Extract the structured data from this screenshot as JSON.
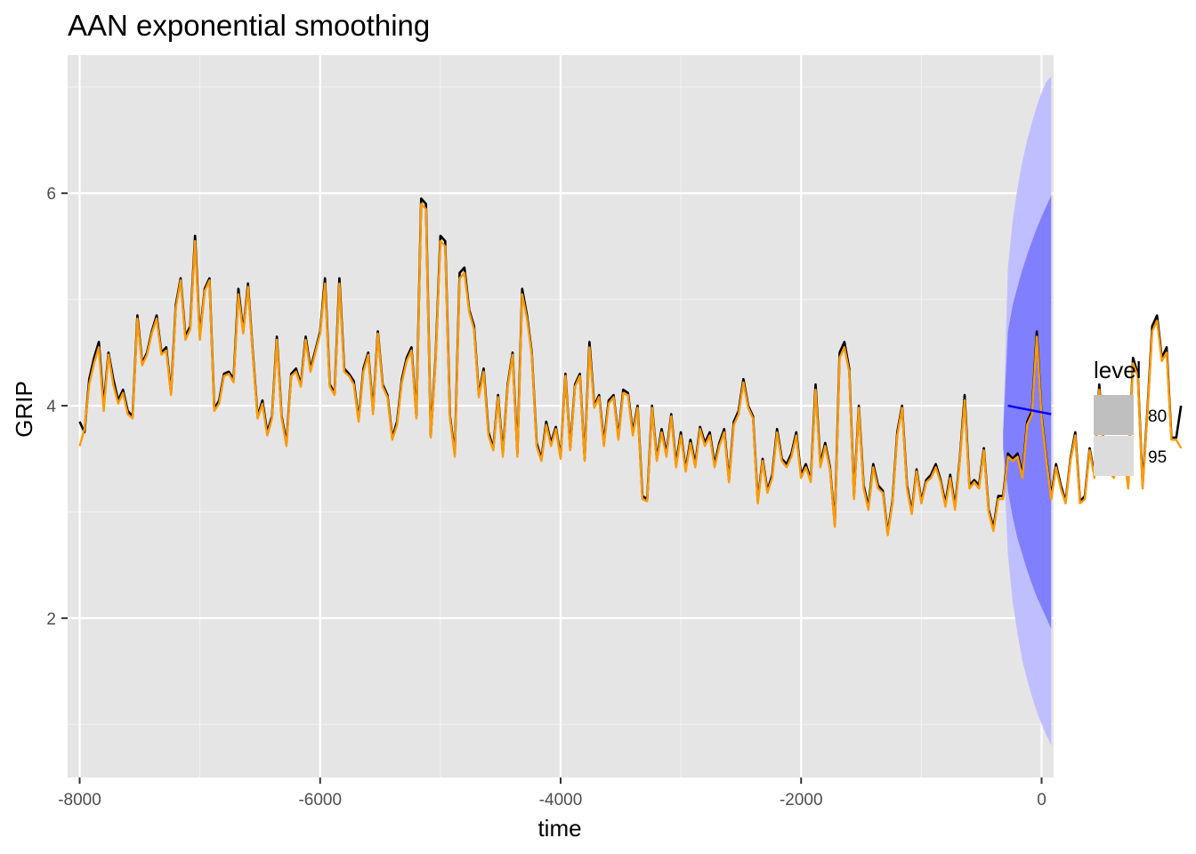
{
  "chart_data": {
    "type": "line",
    "title": "AAN exponential smoothing",
    "xlabel": "time",
    "ylabel": "GRIP",
    "xlim": [
      -8100,
      100
    ],
    "ylim": [
      0.5,
      7.3
    ],
    "x_ticks": [
      -8000,
      -6000,
      -4000,
      -2000,
      0
    ],
    "x_tick_labels": [
      "-8000",
      "-6000",
      "-4000",
      "-2000",
      "0"
    ],
    "y_ticks": [
      2,
      4,
      6
    ],
    "y_tick_labels": [
      "2",
      "4",
      "6"
    ],
    "grid": true,
    "legend": {
      "title": "level",
      "position": "right",
      "entries": [
        {
          "label": "80",
          "color": "#bfbfbf"
        },
        {
          "label": "95",
          "color": "#dcdcdc"
        }
      ]
    },
    "series": [
      {
        "role": "observed",
        "color": "#000000",
        "x_start": -8000,
        "x_step": 40,
        "values": [
          3.85,
          3.75,
          4.25,
          4.45,
          4.6,
          4.0,
          4.5,
          4.25,
          4.05,
          4.15,
          3.95,
          3.9,
          4.85,
          4.4,
          4.5,
          4.7,
          4.85,
          4.5,
          4.55,
          4.12,
          4.95,
          5.2,
          4.65,
          4.75,
          5.6,
          4.65,
          5.1,
          5.2,
          3.97,
          4.05,
          4.3,
          4.32,
          4.25,
          5.1,
          4.7,
          5.15,
          4.5,
          3.9,
          4.05,
          3.75,
          3.9,
          4.65,
          3.9,
          3.65,
          4.3,
          4.35,
          4.2,
          4.65,
          4.35,
          4.52,
          4.7,
          5.2,
          4.2,
          4.12,
          5.2,
          4.35,
          4.3,
          4.23,
          3.87,
          4.35,
          4.5,
          3.95,
          4.7,
          4.2,
          4.1,
          3.7,
          3.85,
          4.25,
          4.45,
          4.55,
          3.9,
          5.95,
          5.9,
          3.72,
          4.45,
          5.6,
          5.55,
          3.9,
          3.55,
          5.25,
          5.3,
          4.9,
          4.75,
          4.1,
          4.35,
          3.75,
          3.6,
          4.1,
          3.55,
          4.2,
          4.5,
          3.55,
          5.1,
          4.85,
          4.5,
          3.65,
          3.5,
          3.85,
          3.65,
          3.8,
          3.52,
          4.3,
          3.6,
          4.2,
          4.3,
          3.5,
          4.6,
          4.0,
          4.1,
          3.65,
          4.05,
          4.1,
          3.7,
          4.15,
          4.12,
          3.75,
          4.0,
          3.15,
          3.12,
          4.0,
          3.5,
          3.78,
          3.55,
          3.92,
          3.45,
          3.75,
          3.4,
          3.68,
          3.45,
          3.8,
          3.65,
          3.75,
          3.45,
          3.65,
          3.78,
          3.3,
          3.85,
          3.95,
          4.25,
          4.0,
          3.9,
          3.1,
          3.5,
          3.2,
          3.35,
          3.78,
          3.5,
          3.45,
          3.55,
          3.75,
          3.35,
          3.45,
          3.3,
          4.2,
          3.45,
          3.65,
          3.42,
          2.88,
          4.5,
          4.6,
          4.35,
          3.15,
          4.0,
          3.25,
          3.05,
          3.45,
          3.25,
          3.2,
          2.8,
          3.1,
          3.75,
          4.0,
          3.25,
          3.0,
          3.4,
          3.1,
          3.3,
          3.35,
          3.45,
          3.3,
          3.08,
          3.35,
          3.05,
          3.5,
          4.1,
          3.25,
          3.3,
          3.25,
          3.6,
          3.02,
          2.85,
          3.15,
          3.15,
          3.55,
          3.5,
          3.55,
          3.35,
          3.85,
          3.95,
          4.7,
          3.9,
          3.5,
          3.15,
          3.45,
          3.25,
          3.1,
          3.5,
          3.75,
          3.1,
          3.15,
          3.6,
          3.35,
          4.2,
          3.55,
          3.4,
          3.35,
          3.5,
          3.6,
          3.25,
          4.45,
          4.3,
          3.25,
          3.95,
          4.75,
          4.85,
          4.45,
          4.55,
          3.7,
          3.7,
          4.0
        ],
        "name": ""
      },
      {
        "role": "fitted",
        "color": "#ff9a00",
        "x_start": -8000,
        "x_step": 40,
        "values": [
          3.62,
          3.78,
          4.2,
          4.4,
          4.55,
          3.95,
          4.48,
          4.2,
          4.02,
          4.12,
          3.92,
          3.88,
          4.82,
          4.38,
          4.48,
          4.68,
          4.82,
          4.48,
          4.52,
          4.1,
          4.92,
          5.18,
          4.62,
          4.72,
          5.55,
          4.62,
          5.08,
          5.18,
          3.95,
          4.02,
          4.28,
          4.3,
          4.22,
          5.05,
          4.68,
          5.12,
          4.48,
          3.88,
          4.02,
          3.72,
          3.88,
          4.62,
          3.88,
          3.62,
          4.28,
          4.32,
          4.18,
          4.62,
          4.32,
          4.5,
          4.68,
          5.15,
          4.18,
          4.1,
          5.15,
          4.32,
          4.28,
          4.2,
          3.85,
          4.32,
          4.48,
          3.92,
          4.68,
          4.18,
          4.08,
          3.68,
          3.82,
          4.22,
          4.42,
          4.52,
          3.88,
          5.9,
          5.85,
          3.7,
          4.42,
          5.55,
          5.5,
          3.88,
          3.52,
          5.2,
          5.25,
          4.88,
          4.72,
          4.08,
          4.32,
          3.72,
          3.58,
          4.08,
          3.52,
          4.18,
          4.48,
          3.52,
          5.05,
          4.82,
          4.48,
          3.62,
          3.48,
          3.82,
          3.62,
          3.78,
          3.5,
          4.28,
          3.58,
          4.18,
          4.28,
          3.48,
          4.55,
          3.98,
          4.08,
          3.62,
          4.02,
          4.08,
          3.68,
          4.12,
          4.1,
          3.72,
          3.98,
          3.12,
          3.1,
          3.98,
          3.48,
          3.75,
          3.52,
          3.9,
          3.42,
          3.72,
          3.38,
          3.65,
          3.42,
          3.78,
          3.62,
          3.72,
          3.42,
          3.62,
          3.75,
          3.28,
          3.82,
          3.92,
          4.22,
          3.98,
          3.88,
          3.08,
          3.48,
          3.18,
          3.32,
          3.75,
          3.48,
          3.42,
          3.52,
          3.72,
          3.32,
          3.42,
          3.28,
          4.15,
          3.42,
          3.62,
          3.4,
          2.86,
          4.45,
          4.55,
          4.32,
          3.12,
          3.98,
          3.22,
          3.02,
          3.42,
          3.22,
          3.18,
          2.78,
          3.08,
          3.72,
          3.98,
          3.22,
          2.98,
          3.38,
          3.08,
          3.28,
          3.32,
          3.42,
          3.28,
          3.05,
          3.32,
          3.02,
          3.48,
          4.05,
          3.22,
          3.28,
          3.22,
          3.58,
          3.0,
          2.82,
          3.12,
          3.12,
          3.52,
          3.48,
          3.52,
          3.32,
          3.82,
          3.92,
          4.65,
          3.88,
          3.48,
          3.12,
          3.42,
          3.22,
          3.08,
          3.48,
          3.72,
          3.08,
          3.12,
          3.58,
          3.32,
          4.15,
          3.52,
          3.38,
          3.32,
          3.48,
          3.58,
          3.22,
          4.4,
          4.28,
          3.22,
          3.92,
          4.7,
          4.8,
          4.42,
          4.5,
          3.68,
          3.68,
          3.6
        ],
        "name": ""
      },
      {
        "role": "forecast",
        "color": "#0000ff",
        "x": [
          -280,
          80
        ],
        "values": [
          4.0,
          3.92
        ],
        "name": ""
      }
    ],
    "forecast_intervals": {
      "x": [
        -320,
        -280,
        -240,
        -200,
        -160,
        -120,
        -80,
        -40,
        0,
        40,
        80
      ],
      "lo80": [
        3.6,
        3.2,
        2.95,
        2.75,
        2.6,
        2.45,
        2.32,
        2.2,
        2.1,
        2.0,
        1.9
      ],
      "hi80": [
        3.75,
        4.7,
        4.95,
        5.12,
        5.28,
        5.42,
        5.55,
        5.67,
        5.78,
        5.88,
        5.98
      ],
      "lo95": [
        3.6,
        2.6,
        2.15,
        1.85,
        1.6,
        1.42,
        1.26,
        1.12,
        1.0,
        0.9,
        0.8
      ],
      "hi95": [
        3.75,
        5.3,
        5.75,
        6.05,
        6.3,
        6.5,
        6.67,
        6.82,
        6.95,
        7.05,
        7.1
      ],
      "color80": "#8080ff",
      "color95": "#bfbfff"
    }
  }
}
